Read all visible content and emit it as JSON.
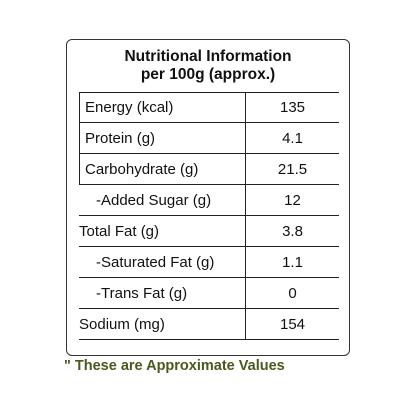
{
  "title": {
    "line1": "Nutritional Information",
    "line2": "per 100g (approx.)"
  },
  "rows": [
    {
      "label": "Energy (kcal)",
      "value": "135"
    },
    {
      "label": "Protein (g)",
      "value": "4.1"
    },
    {
      "label": "Carbohydrate (g)",
      "value": "21.5"
    },
    {
      "label": "-Added Sugar (g)",
      "value": "12"
    },
    {
      "label": "Total Fat (g)",
      "value": "3.8"
    },
    {
      "label": "-Saturated Fat (g)",
      "value": "1.1"
    },
    {
      "label": "-Trans Fat (g)",
      "value": "0"
    },
    {
      "label": "Sodium (mg)",
      "value": "154"
    }
  ],
  "footnote": "\" These are Approximate Values",
  "colors": {
    "footnote": "#4a5a1c",
    "border": "#222222"
  }
}
